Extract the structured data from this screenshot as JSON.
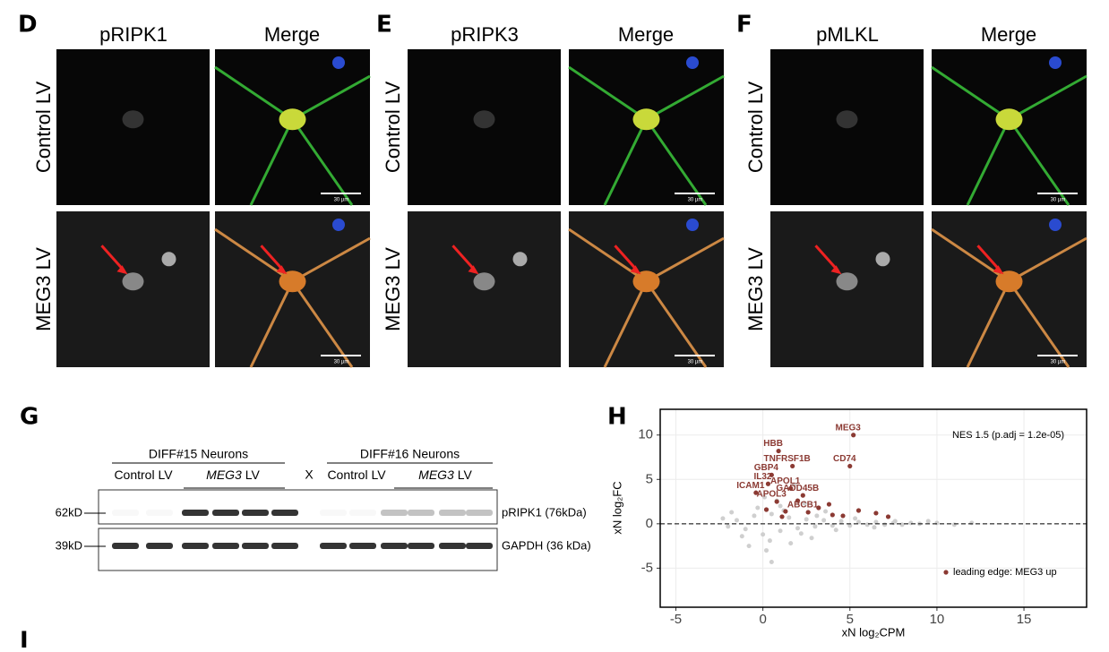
{
  "panels": [
    {
      "letter": "D",
      "columns": [
        "pRIPK1",
        "Merge"
      ],
      "rows": [
        "Control LV",
        "MEG3 LV"
      ],
      "scale": "30 µm"
    },
    {
      "letter": "E",
      "columns": [
        "pRIPK3",
        "Merge"
      ],
      "rows": [
        "Control LV",
        "MEG3 LV"
      ],
      "scale": "30 µm"
    },
    {
      "letter": "F",
      "columns": [
        "pMLKL",
        "Merge"
      ],
      "rows": [
        "Control LV",
        "MEG3 LV"
      ],
      "scale": "30 µm"
    }
  ],
  "blot": {
    "letter": "G",
    "groups": [
      "DIFF#15 Neurons",
      "DIFF#16 Neurons"
    ],
    "conditions": [
      {
        "gene": "Control",
        "suffix": " LV"
      },
      {
        "gene": "MEG3",
        "suffix": " LV"
      }
    ],
    "separator": "X",
    "markers": [
      "62kD",
      "39kD"
    ],
    "bands": [
      "pRIPK1 (76kDa)",
      "GAPDH (36 kDa)"
    ]
  },
  "next_letter": "I",
  "chart_data": {
    "type": "scatter",
    "letter": "H",
    "xlabel": "xN log₂CPM",
    "ylabel": "xN log₂FC",
    "annotation": "NES 1.5 (p.adj = 1.2e-05)",
    "xlim": [
      -5.9,
      18.6
    ],
    "ylim": [
      -9.4,
      12.9
    ],
    "xticks": [
      -5,
      0,
      5,
      10,
      15
    ],
    "yticks": [
      -5,
      0,
      5,
      10
    ],
    "hline": 0,
    "grid": true,
    "background": {
      "color": "#cfcfcf",
      "x": [
        -2,
        -1.5,
        -1,
        -0.5,
        0,
        0.5,
        1,
        1.5,
        2,
        2.5,
        3,
        3.5,
        4,
        4.5,
        5,
        5.5,
        6,
        6.5,
        7,
        7.5,
        8,
        8.5,
        9,
        10,
        -1.8,
        -1.2,
        -0.3,
        0.4,
        1.2,
        2.2,
        3.1,
        4.2,
        5.3,
        6.4,
        7.6,
        0.2,
        0.8,
        1.6,
        2.8,
        -0.8,
        0.1,
        1,
        3.6,
        12,
        11,
        9.5,
        0.5,
        1.8,
        2.4,
        -2.3
      ],
      "y": [
        -0.3,
        0.4,
        -0.6,
        0.9,
        -1.2,
        1.1,
        -0.8,
        0.7,
        -0.5,
        0.5,
        -0.3,
        0.4,
        -0.2,
        0.3,
        -0.2,
        0.2,
        -0.1,
        0.2,
        -0.1,
        0.1,
        -0.1,
        0.1,
        0,
        0.1,
        1.3,
        -1.4,
        1.8,
        -1.9,
        1.5,
        -1.1,
        0.9,
        -0.7,
        0.6,
        -0.4,
        0.3,
        -3,
        2.6,
        -2.2,
        -1.6,
        -2.5,
        3,
        2,
        1.4,
        0.1,
        -0.1,
        0.3,
        -4.3,
        4.4,
        2.3,
        0.6
      ]
    },
    "series": [
      {
        "name": "leading edge: MEG3 up",
        "color": "#8b3a33",
        "x": [
          5.2,
          0.9,
          5,
          0.5,
          1.7,
          0.3,
          1.6,
          -0.4,
          2.3,
          0.8,
          2.6,
          3.2,
          4,
          6.5,
          7.2,
          1.3,
          2,
          3.8,
          4.6,
          5.5,
          0.2,
          1.1
        ],
        "y": [
          10,
          8.2,
          6.5,
          5.5,
          6.5,
          4.5,
          4,
          3.5,
          3.2,
          2.5,
          1.3,
          1.8,
          1,
          1.2,
          0.8,
          1.4,
          2.6,
          2.2,
          0.9,
          1.5,
          1.6,
          0.8
        ],
        "labels": [
          "MEG3",
          "HBB",
          "CD74",
          "GBP4",
          "TNFRSF1B",
          "IL32",
          "APOL1",
          "ICAM1",
          "GADD45B",
          "APOL3",
          "ABCB1",
          null,
          null,
          null,
          null,
          null,
          null,
          null,
          null,
          null,
          null,
          null
        ]
      }
    ]
  }
}
